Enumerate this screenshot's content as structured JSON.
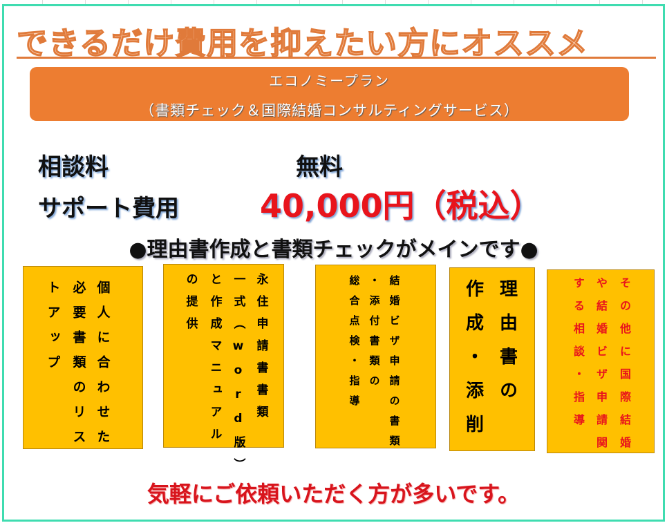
{
  "title": "できるだけ費用を抑えたい方にオススメ",
  "plan": {
    "name": "エコノミープラン",
    "subtitle": "（書類チェック＆国際結婚コンサルティングサービス）"
  },
  "fees": {
    "consult_label": "相談料",
    "consult_value": "無料",
    "support_label": "サポート費用",
    "support_value": "40,000円（税込）"
  },
  "main_message": "●理由書作成と書類チェックがメインです●",
  "boxes": [
    {
      "lines": [
        "個人に合わせた",
        "必要書類のリス",
        "トアップ"
      ],
      "color": "#111111"
    },
    {
      "lines": [
        "永住申請書書類",
        "一式（word版）",
        "と作成マニュアル",
        "の提供"
      ],
      "color": "#111111"
    },
    {
      "lines": [
        "結婚ビザ申請の書類",
        "・添付書類の",
        "総合点検・指導"
      ],
      "color": "#111111"
    },
    {
      "lines": [
        "理由書の",
        "作成・添削"
      ],
      "color": "#111111"
    },
    {
      "lines": [
        "その他に国際結婚",
        "や結婚ビザ申請関",
        "する相談・指導"
      ],
      "color": "#e8141c"
    }
  ],
  "footer": "気軽にご依頼いただく方が多いです。",
  "colors": {
    "frame": "#3fdcb0",
    "plan_bg": "#ed7d31",
    "box_bg": "#ffc000",
    "price": "#e8141c"
  }
}
